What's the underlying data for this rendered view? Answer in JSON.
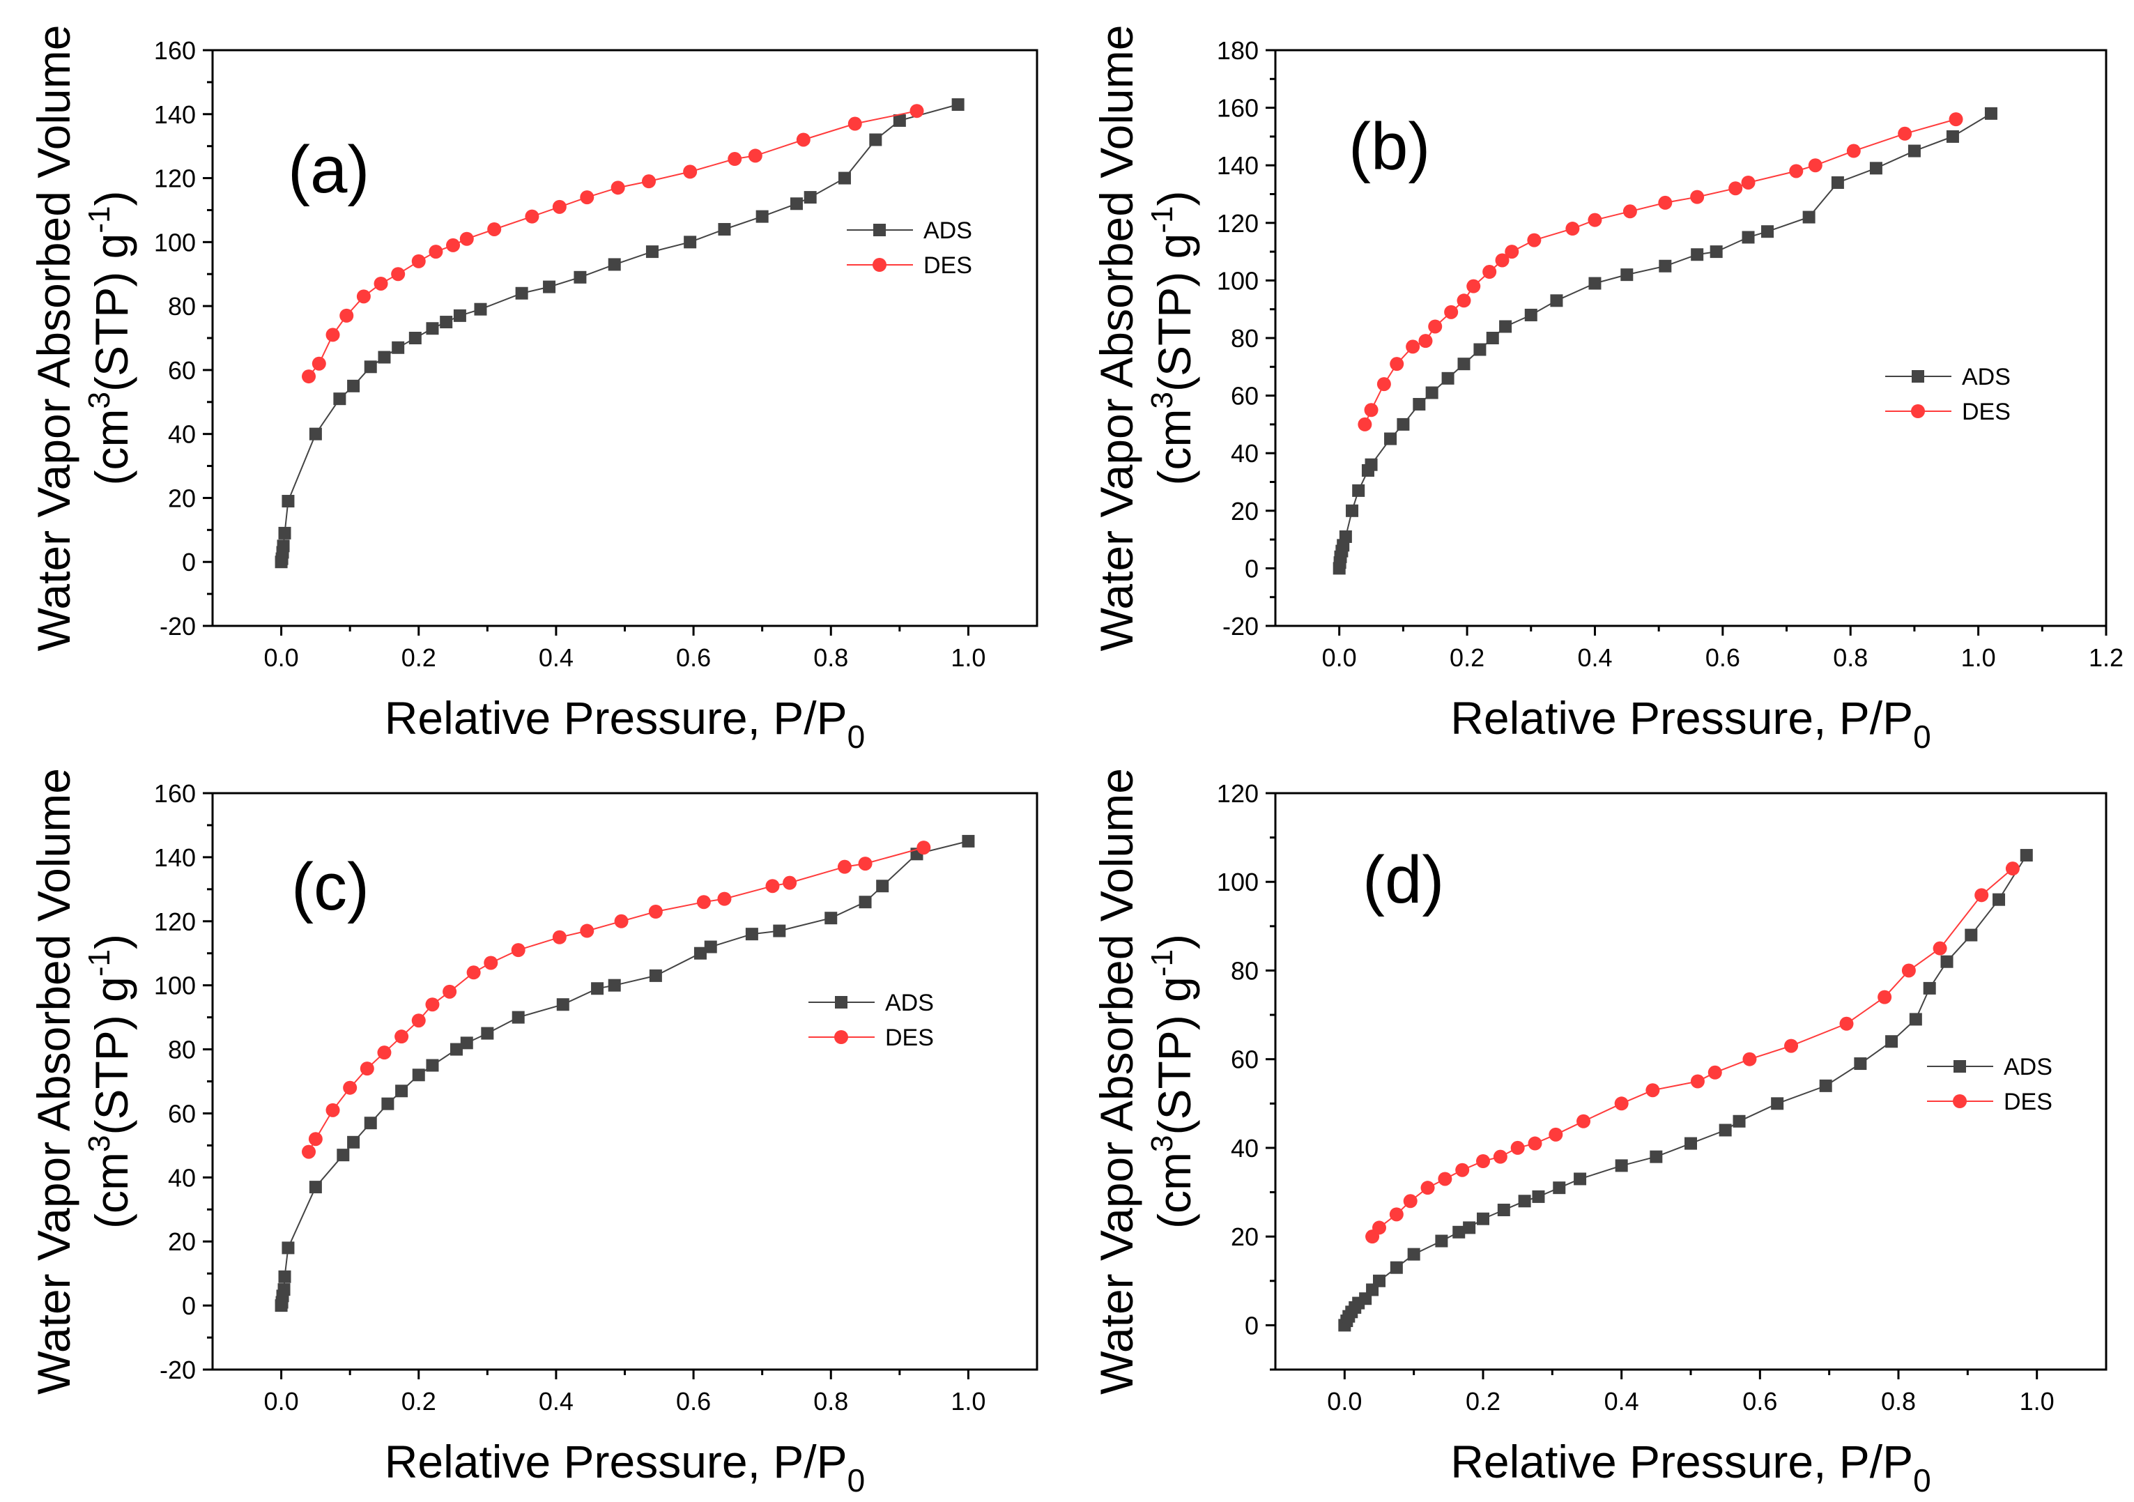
{
  "chart_data": [
    {
      "type": "line",
      "panel_label": "(a)",
      "xlabel": "Relative Pressure, P/P",
      "xlabel_sub": "0",
      "ylabel_line1": "Water Vapor Absorbed Volume",
      "ylabel_line2_pre": "(cm",
      "ylabel_line2_sup": "3",
      "ylabel_line2_mid": "(STP) g",
      "ylabel_line2_sup2": "-1",
      "ylabel_line2_post": ")",
      "xlim": [
        -0.1,
        1.1
      ],
      "ylim": [
        -20,
        160
      ],
      "xticks": [
        0.0,
        0.2,
        0.4,
        0.6,
        0.8,
        1.0
      ],
      "xtick_labels": [
        "0.0",
        "0.2",
        "0.4",
        "0.6",
        "0.8",
        "1.0"
      ],
      "yticks": [
        -20,
        0,
        20,
        40,
        60,
        80,
        100,
        120,
        140,
        160
      ],
      "ytick_labels": [
        "-20",
        "0",
        "20",
        "40",
        "60",
        "80",
        "100",
        "120",
        "140",
        "160"
      ],
      "legend_position": "right-middle",
      "series": [
        {
          "name": "ADS",
          "color": "#444444",
          "marker": "square",
          "x": [
            0.0,
            0.001,
            0.002,
            0.003,
            0.005,
            0.01,
            0.05,
            0.085,
            0.105,
            0.13,
            0.15,
            0.17,
            0.195,
            0.22,
            0.24,
            0.26,
            0.29,
            0.35,
            0.39,
            0.435,
            0.485,
            0.54,
            0.595,
            0.645,
            0.7,
            0.75,
            0.77,
            0.82,
            0.865,
            0.9,
            0.985
          ],
          "y": [
            0,
            1,
            3,
            5,
            9,
            19,
            40,
            51,
            55,
            61,
            64,
            67,
            70,
            73,
            75,
            77,
            79,
            84,
            86,
            89,
            93,
            97,
            100,
            104,
            108,
            112,
            114,
            120,
            132,
            138,
            143
          ]
        },
        {
          "name": "DES",
          "color": "#ff3b3b",
          "marker": "circle",
          "x": [
            0.04,
            0.055,
            0.075,
            0.095,
            0.12,
            0.145,
            0.17,
            0.2,
            0.225,
            0.25,
            0.27,
            0.31,
            0.365,
            0.405,
            0.445,
            0.49,
            0.535,
            0.595,
            0.66,
            0.69,
            0.76,
            0.835,
            0.925
          ],
          "y": [
            58,
            62,
            71,
            77,
            83,
            87,
            90,
            94,
            97,
            99,
            101,
            104,
            108,
            111,
            114,
            117,
            119,
            122,
            126,
            127,
            132,
            137,
            141
          ]
        }
      ]
    },
    {
      "type": "line",
      "panel_label": "(b)",
      "xlabel": "Relative Pressure, P/P",
      "xlabel_sub": "0",
      "ylabel_line1": "Water Vapor Absorbed Volume",
      "ylabel_line2_pre": "(cm",
      "ylabel_line2_sup": "3",
      "ylabel_line2_mid": "(STP) g",
      "ylabel_line2_sup2": "-1",
      "ylabel_line2_post": ")",
      "xlim": [
        -0.1,
        1.2
      ],
      "ylim": [
        -20,
        180
      ],
      "xticks": [
        0.0,
        0.2,
        0.4,
        0.6,
        0.8,
        1.0,
        1.2
      ],
      "xtick_labels": [
        "0.0",
        "0.2",
        "0.4",
        "0.6",
        "0.8",
        "1.0",
        "1.2"
      ],
      "yticks": [
        -20,
        0,
        20,
        40,
        60,
        80,
        100,
        120,
        140,
        160,
        180
      ],
      "ytick_labels": [
        "-20",
        "0",
        "20",
        "40",
        "60",
        "80",
        "100",
        "120",
        "140",
        "160",
        "180"
      ],
      "legend_position": "right-middle",
      "series": [
        {
          "name": "ADS",
          "color": "#444444",
          "marker": "square",
          "x": [
            0.0,
            0.001,
            0.002,
            0.004,
            0.006,
            0.01,
            0.02,
            0.03,
            0.045,
            0.05,
            0.08,
            0.1,
            0.125,
            0.145,
            0.17,
            0.195,
            0.22,
            0.24,
            0.26,
            0.3,
            0.34,
            0.4,
            0.45,
            0.51,
            0.56,
            0.59,
            0.64,
            0.67,
            0.735,
            0.78,
            0.84,
            0.9,
            0.96,
            1.02
          ],
          "y": [
            0,
            2,
            4,
            6,
            8,
            11,
            20,
            27,
            34,
            36,
            45,
            50,
            57,
            61,
            66,
            71,
            76,
            80,
            84,
            88,
            93,
            99,
            102,
            105,
            109,
            110,
            115,
            117,
            122,
            134,
            139,
            145,
            150,
            158
          ]
        },
        {
          "name": "DES",
          "color": "#ff3b3b",
          "marker": "circle",
          "x": [
            0.04,
            0.05,
            0.07,
            0.09,
            0.115,
            0.135,
            0.15,
            0.175,
            0.195,
            0.21,
            0.235,
            0.255,
            0.27,
            0.305,
            0.365,
            0.4,
            0.455,
            0.51,
            0.56,
            0.62,
            0.64,
            0.715,
            0.745,
            0.805,
            0.885,
            0.965
          ],
          "y": [
            50,
            55,
            64,
            71,
            77,
            79,
            84,
            89,
            93,
            98,
            103,
            107,
            110,
            114,
            118,
            121,
            124,
            127,
            129,
            132,
            134,
            138,
            140,
            145,
            151,
            156
          ]
        }
      ]
    },
    {
      "type": "line",
      "panel_label": "(c)",
      "xlabel": "Relative Pressure, P/P",
      "xlabel_sub": "0",
      "ylabel_line1": "Water Vapor Absorbed Volume",
      "ylabel_line2_pre": "(cm",
      "ylabel_line2_sup": "3",
      "ylabel_line2_mid": "(STP) g",
      "ylabel_line2_sup2": "-1",
      "ylabel_line2_post": ")",
      "xlim": [
        -0.1,
        1.1
      ],
      "ylim": [
        -20,
        160
      ],
      "xticks": [
        0.0,
        0.2,
        0.4,
        0.6,
        0.8,
        1.0
      ],
      "xtick_labels": [
        "0.0",
        "0.2",
        "0.4",
        "0.6",
        "0.8",
        "1.0"
      ],
      "yticks": [
        -20,
        0,
        20,
        40,
        60,
        80,
        100,
        120,
        140,
        160
      ],
      "ytick_labels": [
        "-20",
        "0",
        "20",
        "40",
        "60",
        "80",
        "100",
        "120",
        "140",
        "160"
      ],
      "legend_position": "right-middle",
      "series": [
        {
          "name": "ADS",
          "color": "#444444",
          "marker": "square",
          "x": [
            0.0,
            0.001,
            0.002,
            0.004,
            0.005,
            0.01,
            0.05,
            0.09,
            0.105,
            0.13,
            0.155,
            0.175,
            0.2,
            0.22,
            0.255,
            0.27,
            0.3,
            0.345,
            0.41,
            0.46,
            0.485,
            0.545,
            0.61,
            0.625,
            0.685,
            0.725,
            0.8,
            0.85,
            0.875,
            0.925,
            1.0
          ],
          "y": [
            0,
            1,
            3,
            5,
            9,
            18,
            37,
            47,
            51,
            57,
            63,
            67,
            72,
            75,
            80,
            82,
            85,
            90,
            94,
            99,
            100,
            103,
            110,
            112,
            116,
            117,
            121,
            126,
            131,
            141,
            145
          ]
        },
        {
          "name": "DES",
          "color": "#ff3b3b",
          "marker": "circle",
          "x": [
            0.04,
            0.05,
            0.075,
            0.1,
            0.125,
            0.15,
            0.175,
            0.2,
            0.22,
            0.245,
            0.28,
            0.305,
            0.345,
            0.405,
            0.445,
            0.495,
            0.545,
            0.615,
            0.645,
            0.715,
            0.74,
            0.82,
            0.85,
            0.935
          ],
          "y": [
            48,
            52,
            61,
            68,
            74,
            79,
            84,
            89,
            94,
            98,
            104,
            107,
            111,
            115,
            117,
            120,
            123,
            126,
            127,
            131,
            132,
            137,
            138,
            143
          ]
        }
      ]
    },
    {
      "type": "line",
      "panel_label": "(d)",
      "xlabel": "Relative Pressure, P/P",
      "xlabel_sub": "0",
      "ylabel_line1": "Water Vapor Absorbed Volume",
      "ylabel_line2_pre": "(cm",
      "ylabel_line2_sup": "3",
      "ylabel_line2_mid": "(STP) g",
      "ylabel_line2_sup2": "-1",
      "ylabel_line2_post": ")",
      "xlim": [
        -0.1,
        1.1
      ],
      "ylim": [
        -10,
        120
      ],
      "xticks": [
        0.0,
        0.2,
        0.4,
        0.6,
        0.8,
        1.0
      ],
      "xtick_labels": [
        "0.0",
        "0.2",
        "0.4",
        "0.6",
        "0.8",
        "1.0"
      ],
      "yticks": [
        0,
        20,
        40,
        60,
        80,
        100,
        120
      ],
      "ytick_labels": [
        "0",
        "20",
        "40",
        "60",
        "80",
        "100",
        "120"
      ],
      "legend_position": "right-middle",
      "series": [
        {
          "name": "ADS",
          "color": "#444444",
          "marker": "square",
          "x": [
            0.0,
            0.003,
            0.006,
            0.01,
            0.015,
            0.02,
            0.03,
            0.04,
            0.05,
            0.075,
            0.1,
            0.14,
            0.165,
            0.18,
            0.2,
            0.23,
            0.26,
            0.28,
            0.31,
            0.34,
            0.4,
            0.45,
            0.5,
            0.55,
            0.57,
            0.625,
            0.695,
            0.745,
            0.79,
            0.825,
            0.845,
            0.87,
            0.905,
            0.945,
            0.985
          ],
          "y": [
            0,
            1,
            2,
            3,
            4,
            5,
            6,
            8,
            10,
            13,
            16,
            19,
            21,
            22,
            24,
            26,
            28,
            29,
            31,
            33,
            36,
            38,
            41,
            44,
            46,
            50,
            54,
            59,
            64,
            69,
            76,
            82,
            88,
            96,
            106
          ]
        },
        {
          "name": "DES",
          "color": "#ff3b3b",
          "marker": "circle",
          "x": [
            0.04,
            0.05,
            0.075,
            0.095,
            0.12,
            0.145,
            0.17,
            0.2,
            0.225,
            0.25,
            0.275,
            0.305,
            0.345,
            0.4,
            0.445,
            0.51,
            0.535,
            0.585,
            0.645,
            0.725,
            0.78,
            0.815,
            0.86,
            0.92,
            0.965
          ],
          "y": [
            20,
            22,
            25,
            28,
            31,
            33,
            35,
            37,
            38,
            40,
            41,
            43,
            46,
            50,
            53,
            55,
            57,
            60,
            63,
            68,
            74,
            80,
            85,
            97,
            103
          ]
        }
      ]
    }
  ]
}
